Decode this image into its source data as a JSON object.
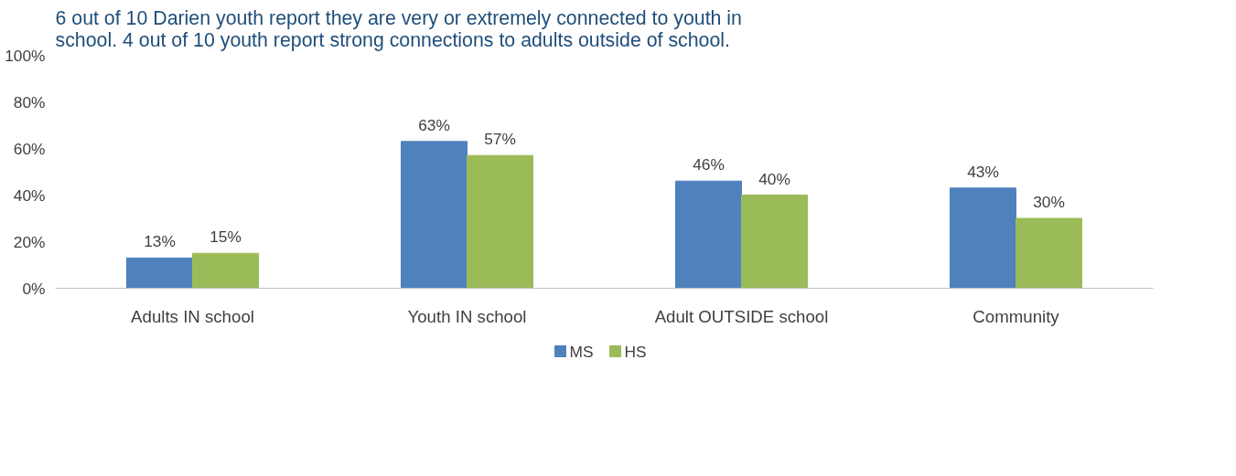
{
  "chart_data": {
    "type": "bar",
    "title": "6 out of 10 Darien youth report they are very or extremely connected to youth in school. 4 out of 10 youth report strong connections to adults outside of school.",
    "categories": [
      "Adults IN school",
      "Youth IN school",
      "Adult OUTSIDE school",
      "Community"
    ],
    "series": [
      {
        "name": "MS",
        "color": "#4f81bd",
        "values": [
          13,
          63,
          46,
          43
        ],
        "value_labels": [
          "13%",
          "63%",
          "46%",
          "43%"
        ]
      },
      {
        "name": "HS",
        "color": "#9bbb59",
        "values": [
          15,
          57,
          40,
          30
        ],
        "value_labels": [
          "15%",
          "57%",
          "40%",
          "30%"
        ]
      }
    ],
    "ylim": [
      0,
      100
    ],
    "yticks": [
      {
        "value": 0,
        "label": "0%"
      },
      {
        "value": 20,
        "label": "20%"
      },
      {
        "value": 40,
        "label": "40%"
      },
      {
        "value": 60,
        "label": "60%"
      },
      {
        "value": 80,
        "label": "80%"
      },
      {
        "value": 100,
        "label": "100%"
      }
    ],
    "grid": false,
    "legend": "bottom"
  }
}
